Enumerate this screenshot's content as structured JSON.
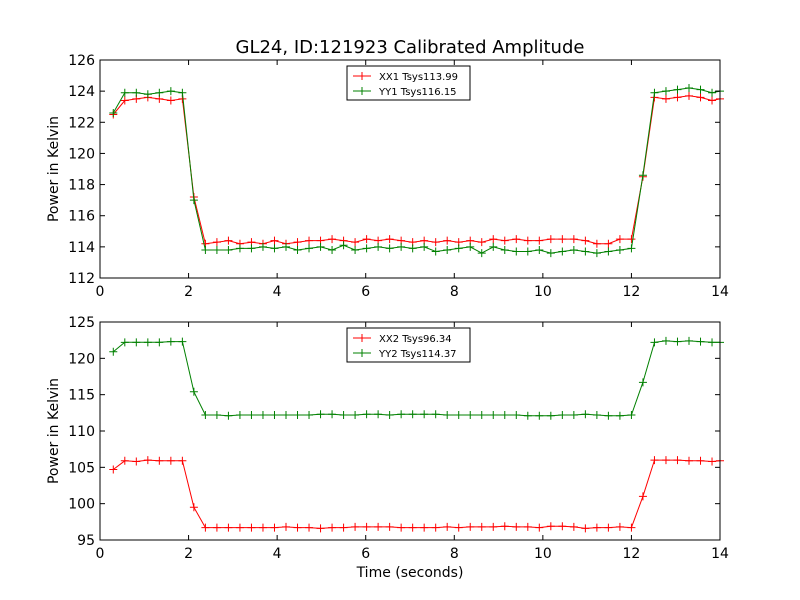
{
  "figure": {
    "title": "GL24, ID:121923 Calibrated Amplitude"
  },
  "chart_data": [
    {
      "type": "line",
      "title": "GL24, ID:121923 Calibrated Amplitude",
      "xlabel": "",
      "ylabel": "Power in Kelvin",
      "xlim": [
        0,
        14
      ],
      "ylim": [
        112,
        126
      ],
      "xticks": [
        "0",
        "2",
        "4",
        "6",
        "8",
        "10",
        "12",
        "14"
      ],
      "yticks": [
        "112",
        "114",
        "116",
        "118",
        "120",
        "122",
        "124",
        "126"
      ],
      "grid": false,
      "legend_position": "top-center",
      "x": [
        0.3,
        0.56,
        0.82,
        1.08,
        1.34,
        1.6,
        1.86,
        2.12,
        2.38,
        2.64,
        2.9,
        3.16,
        3.42,
        3.68,
        3.94,
        4.2,
        4.46,
        4.72,
        4.98,
        5.24,
        5.5,
        5.76,
        6.02,
        6.28,
        6.54,
        6.8,
        7.06,
        7.32,
        7.58,
        7.84,
        8.1,
        8.36,
        8.62,
        8.88,
        9.14,
        9.4,
        9.66,
        9.92,
        10.18,
        10.44,
        10.7,
        10.96,
        11.22,
        11.48,
        11.74,
        12.0,
        12.26,
        12.52,
        12.78,
        13.04,
        13.3,
        13.56,
        13.82,
        14.0
      ],
      "series": [
        {
          "name": "XX1 Tsys113.99",
          "color": "#ff0000",
          "values": [
            122.5,
            123.4,
            123.5,
            123.6,
            123.5,
            123.4,
            123.5,
            117.2,
            114.2,
            114.3,
            114.4,
            114.2,
            114.3,
            114.2,
            114.4,
            114.2,
            114.3,
            114.4,
            114.4,
            114.5,
            114.4,
            114.3,
            114.5,
            114.4,
            114.5,
            114.4,
            114.3,
            114.4,
            114.3,
            114.4,
            114.3,
            114.4,
            114.3,
            114.5,
            114.4,
            114.5,
            114.4,
            114.4,
            114.5,
            114.5,
            114.5,
            114.4,
            114.2,
            114.2,
            114.5,
            114.5,
            118.5,
            123.6,
            123.5,
            123.6,
            123.7,
            123.6,
            123.4,
            123.5
          ]
        },
        {
          "name": "YY1 Tsys116.15",
          "color": "#008000",
          "values": [
            122.6,
            123.9,
            123.9,
            123.8,
            123.9,
            124.0,
            123.9,
            117.0,
            113.8,
            113.8,
            113.8,
            113.9,
            113.9,
            114.0,
            113.9,
            114.0,
            113.8,
            113.9,
            114.0,
            113.8,
            114.1,
            113.8,
            113.9,
            114.0,
            113.9,
            114.0,
            113.9,
            114.0,
            113.7,
            113.8,
            113.9,
            114.0,
            113.6,
            114.0,
            113.8,
            113.7,
            113.7,
            113.8,
            113.6,
            113.7,
            113.8,
            113.7,
            113.6,
            113.7,
            113.8,
            113.9,
            118.6,
            123.9,
            124.0,
            124.1,
            124.2,
            124.1,
            123.9,
            124.0
          ]
        }
      ]
    },
    {
      "type": "line",
      "title": "",
      "xlabel": "Time (seconds)",
      "ylabel": "Power in Kelvin",
      "xlim": [
        0,
        14
      ],
      "ylim": [
        95,
        125
      ],
      "xticks": [
        "0",
        "2",
        "4",
        "6",
        "8",
        "10",
        "12",
        "14"
      ],
      "yticks": [
        "95",
        "100",
        "105",
        "110",
        "115",
        "120",
        "125"
      ],
      "grid": false,
      "legend_position": "top-center",
      "x": [
        0.3,
        0.56,
        0.82,
        1.08,
        1.34,
        1.6,
        1.86,
        2.12,
        2.38,
        2.64,
        2.9,
        3.16,
        3.42,
        3.68,
        3.94,
        4.2,
        4.46,
        4.72,
        4.98,
        5.24,
        5.5,
        5.76,
        6.02,
        6.28,
        6.54,
        6.8,
        7.06,
        7.32,
        7.58,
        7.84,
        8.1,
        8.36,
        8.62,
        8.88,
        9.14,
        9.4,
        9.66,
        9.92,
        10.18,
        10.44,
        10.7,
        10.96,
        11.22,
        11.48,
        11.74,
        12.0,
        12.26,
        12.52,
        12.78,
        13.04,
        13.3,
        13.56,
        13.82,
        14.0
      ],
      "series": [
        {
          "name": "XX2 Tsys96.34",
          "color": "#ff0000",
          "values": [
            104.7,
            105.9,
            105.8,
            106.0,
            105.9,
            105.9,
            105.9,
            99.5,
            96.7,
            96.7,
            96.7,
            96.7,
            96.7,
            96.7,
            96.7,
            96.8,
            96.7,
            96.7,
            96.6,
            96.7,
            96.7,
            96.8,
            96.8,
            96.8,
            96.8,
            96.7,
            96.7,
            96.7,
            96.7,
            96.8,
            96.7,
            96.8,
            96.8,
            96.8,
            96.9,
            96.8,
            96.8,
            96.7,
            96.9,
            96.9,
            96.8,
            96.6,
            96.7,
            96.7,
            96.8,
            96.7,
            101.0,
            106.0,
            106.0,
            106.0,
            105.9,
            105.9,
            105.8,
            105.9
          ]
        },
        {
          "name": "YY2 Tsys114.37",
          "color": "#008000",
          "values": [
            120.9,
            122.2,
            122.2,
            122.2,
            122.2,
            122.3,
            122.3,
            115.4,
            112.2,
            112.2,
            112.1,
            112.2,
            112.2,
            112.2,
            112.2,
            112.2,
            112.2,
            112.2,
            112.3,
            112.3,
            112.2,
            112.2,
            112.3,
            112.3,
            112.2,
            112.3,
            112.3,
            112.3,
            112.3,
            112.2,
            112.2,
            112.2,
            112.2,
            112.2,
            112.2,
            112.2,
            112.1,
            112.1,
            112.1,
            112.2,
            112.2,
            112.3,
            112.2,
            112.1,
            112.1,
            112.2,
            116.7,
            122.2,
            122.4,
            122.3,
            122.4,
            122.3,
            122.2,
            122.2
          ]
        }
      ]
    }
  ]
}
